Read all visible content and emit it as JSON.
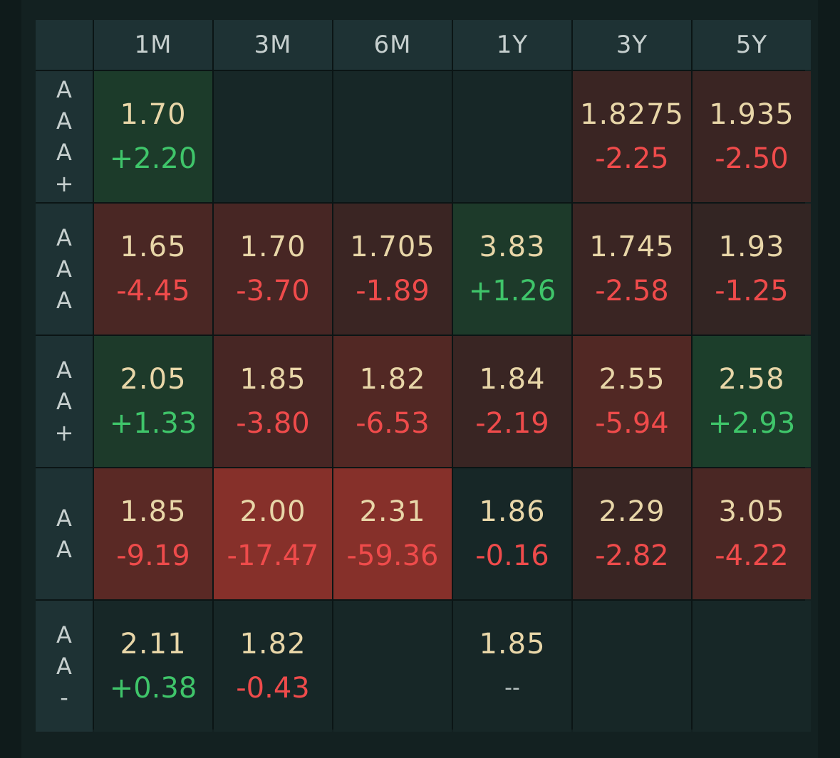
{
  "columns": [
    "1M",
    "3M",
    "6M",
    "1Y",
    "3Y",
    "5Y"
  ],
  "rows": [
    {
      "label": [
        "A",
        "A",
        "A",
        "+"
      ],
      "cells": [
        {
          "price": "1.70",
          "change": "+2.20",
          "dir": "pos",
          "bg": "#1c3b2a"
        },
        {
          "price": "",
          "change": "",
          "dir": "none",
          "bg": "#172727"
        },
        {
          "price": "",
          "change": "",
          "dir": "none",
          "bg": "#172727"
        },
        {
          "price": "",
          "change": "",
          "dir": "none",
          "bg": "#172727"
        },
        {
          "price": "1.8275",
          "change": "-2.25",
          "dir": "neg",
          "bg": "#3a2523"
        },
        {
          "price": "1.935",
          "change": "-2.50",
          "dir": "neg",
          "bg": "#3a2523"
        }
      ]
    },
    {
      "label": [
        "A",
        "A",
        "A"
      ],
      "cells": [
        {
          "price": "1.65",
          "change": "-4.45",
          "dir": "neg",
          "bg": "#4a2724"
        },
        {
          "price": "1.70",
          "change": "-3.70",
          "dir": "neg",
          "bg": "#472624"
        },
        {
          "price": "1.705",
          "change": "-1.89",
          "dir": "neg",
          "bg": "#3a2523"
        },
        {
          "price": "3.83",
          "change": "+1.26",
          "dir": "pos",
          "bg": "#1d3a2a"
        },
        {
          "price": "1.745",
          "change": "-2.58",
          "dir": "neg",
          "bg": "#3a2523"
        },
        {
          "price": "1.93",
          "change": "-1.25",
          "dir": "neg",
          "bg": "#332523"
        }
      ]
    },
    {
      "label": [
        "A",
        "A",
        "+"
      ],
      "cells": [
        {
          "price": "2.05",
          "change": "+1.33",
          "dir": "pos",
          "bg": "#1d3a2a"
        },
        {
          "price": "1.85",
          "change": "-3.80",
          "dir": "neg",
          "bg": "#472624"
        },
        {
          "price": "1.82",
          "change": "-6.53",
          "dir": "neg",
          "bg": "#522824"
        },
        {
          "price": "1.84",
          "change": "-2.19",
          "dir": "neg",
          "bg": "#392523"
        },
        {
          "price": "2.55",
          "change": "-5.94",
          "dir": "neg",
          "bg": "#512824"
        },
        {
          "price": "2.58",
          "change": "+2.93",
          "dir": "pos",
          "bg": "#1c3e2b"
        }
      ]
    },
    {
      "label": [
        "A",
        "A"
      ],
      "cells": [
        {
          "price": "1.85",
          "change": "-9.19",
          "dir": "neg",
          "bg": "#5a2925"
        },
        {
          "price": "2.00",
          "change": "-17.47",
          "dir": "neg",
          "bg": "#86302a"
        },
        {
          "price": "2.31",
          "change": "-59.36",
          "dir": "neg",
          "bg": "#86302a"
        },
        {
          "price": "1.86",
          "change": "-0.16",
          "dir": "neg",
          "bg": "#172727"
        },
        {
          "price": "2.29",
          "change": "-2.82",
          "dir": "neg",
          "bg": "#392523"
        },
        {
          "price": "3.05",
          "change": "-4.22",
          "dir": "neg",
          "bg": "#4a2724"
        }
      ]
    },
    {
      "label": [
        "A",
        "A",
        "-"
      ],
      "cells": [
        {
          "price": "2.11",
          "change": "+0.38",
          "dir": "pos",
          "bg": "#172727"
        },
        {
          "price": "1.82",
          "change": "-0.43",
          "dir": "neg",
          "bg": "#172727"
        },
        {
          "price": "",
          "change": "",
          "dir": "none",
          "bg": "#172727"
        },
        {
          "price": "1.85",
          "change": "--",
          "dir": "flat",
          "bg": "#172727"
        },
        {
          "price": "",
          "change": "",
          "dir": "none",
          "bg": "#172727"
        },
        {
          "price": "",
          "change": "",
          "dir": "none",
          "bg": "#172727"
        }
      ]
    }
  ],
  "colors": {
    "positive": "#3fc56a",
    "negative": "#ef4b4b",
    "price": "#e8d6a8",
    "header_bg": "#1e3234"
  }
}
